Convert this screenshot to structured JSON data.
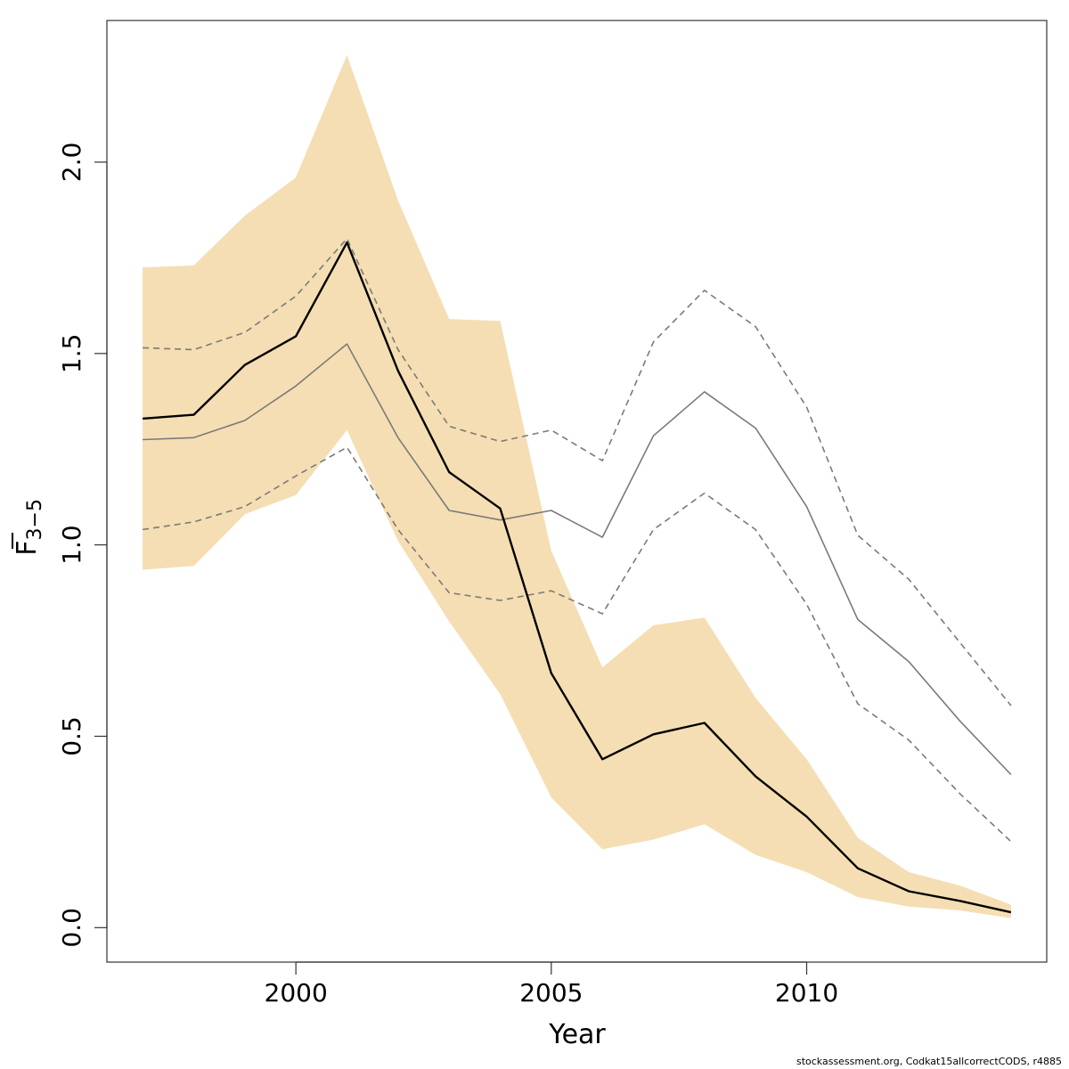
{
  "chart_data": {
    "type": "line",
    "title": "",
    "xlabel": "Year",
    "ylabel_main": "F",
    "ylabel_sub": "3−5",
    "xlim": [
      1996.3,
      2014.7
    ],
    "ylim": [
      -0.09,
      2.37
    ],
    "xticks": [
      2000,
      2005,
      2010
    ],
    "yticks": [
      0.0,
      0.5,
      1.0,
      1.5,
      2.0
    ],
    "ytick_labels": [
      "0.0",
      "0.5",
      "1.0",
      "1.5",
      "2.0"
    ],
    "x": [
      1997,
      1998,
      1999,
      2000,
      2001,
      2002,
      2003,
      2004,
      2005,
      2006,
      2007,
      2008,
      2009,
      2010,
      2011,
      2012,
      2013,
      2014
    ],
    "band": {
      "lower": [
        0.935,
        0.945,
        1.08,
        1.13,
        1.3,
        1.01,
        0.8,
        0.61,
        0.34,
        0.205,
        0.23,
        0.27,
        0.19,
        0.145,
        0.08,
        0.055,
        0.045,
        0.025
      ],
      "upper": [
        1.725,
        1.73,
        1.86,
        1.96,
        2.28,
        1.9,
        1.59,
        1.585,
        0.985,
        0.68,
        0.79,
        0.81,
        0.6,
        0.44,
        0.235,
        0.145,
        0.11,
        0.06
      ],
      "color": "#f5deb3"
    },
    "series": [
      {
        "values": [
          1.33,
          1.34,
          1.47,
          1.545,
          1.79,
          1.455,
          1.19,
          1.095,
          0.665,
          0.44,
          0.505,
          0.535,
          0.395,
          0.29,
          0.155,
          0.095,
          0.07,
          0.04
        ],
        "color": "#000000",
        "dash": "solid",
        "width": 2.4
      },
      {
        "values": [
          1.275,
          1.28,
          1.325,
          1.415,
          1.525,
          1.28,
          1.09,
          1.065,
          1.09,
          1.02,
          1.285,
          1.4,
          1.305,
          1.1,
          0.805,
          0.695,
          0.54,
          0.4
        ],
        "color": "#7a7a7a",
        "dash": "solid",
        "width": 1.6
      },
      {
        "values": [
          1.515,
          1.51,
          1.555,
          1.65,
          1.8,
          1.51,
          1.31,
          1.27,
          1.3,
          1.22,
          1.53,
          1.665,
          1.57,
          1.36,
          1.025,
          0.91,
          0.745,
          0.58
        ],
        "color": "#7a7a7a",
        "dash": "dashed",
        "width": 1.6
      },
      {
        "values": [
          1.04,
          1.06,
          1.1,
          1.18,
          1.255,
          1.04,
          0.875,
          0.855,
          0.88,
          0.82,
          1.04,
          1.135,
          1.04,
          0.845,
          0.585,
          0.49,
          0.35,
          0.225
        ],
        "color": "#7a7a7a",
        "dash": "dashed",
        "width": 1.6
      }
    ]
  },
  "credit": "stockassessment.org, Codkat15allcorrectCODS, r4885"
}
